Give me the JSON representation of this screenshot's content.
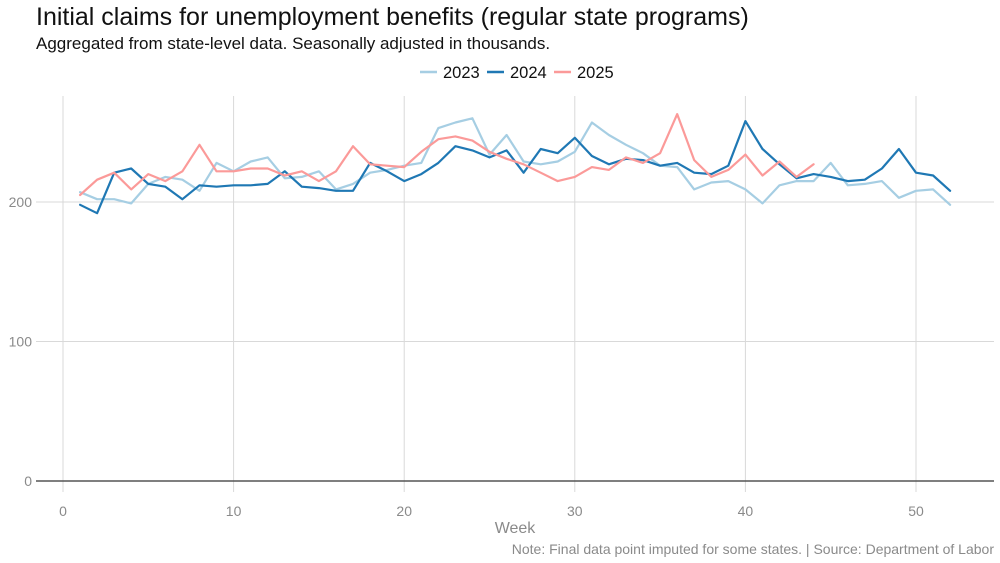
{
  "title": "Initial claims for unemployment benefits (regular state programs)",
  "subtitle": "Aggregated from state-level data. Seasonally adjusted in thousands.",
  "caption": "Note: Final data point imputed for some states. | Source: Department of Labor",
  "chart_data": {
    "type": "line",
    "xlabel": "Week",
    "ylabel": "",
    "xlim": [
      0,
      55
    ],
    "ylim": [
      0,
      275
    ],
    "x_ticks": [
      0,
      10,
      20,
      30,
      40,
      50
    ],
    "y_ticks": [
      0,
      100,
      200
    ],
    "grid": true,
    "legend_position": "top",
    "series": [
      {
        "name": "2023",
        "color": "#a6cee3",
        "x": [
          1,
          2,
          3,
          4,
          5,
          6,
          7,
          8,
          9,
          10,
          11,
          12,
          13,
          14,
          15,
          16,
          17,
          18,
          19,
          20,
          21,
          22,
          23,
          24,
          25,
          26,
          27,
          28,
          29,
          30,
          31,
          32,
          33,
          34,
          35,
          36,
          37,
          38,
          39,
          40,
          41,
          42,
          43,
          44,
          45,
          46,
          47,
          48,
          49,
          50,
          51,
          52
        ],
        "y": [
          207,
          202,
          202,
          199,
          213,
          218,
          216,
          208,
          228,
          222,
          229,
          232,
          217,
          218,
          222,
          209,
          213,
          221,
          223,
          226,
          228,
          253,
          257,
          260,
          234,
          248,
          229,
          227,
          229,
          236,
          257,
          248,
          241,
          235,
          226,
          225,
          209,
          214,
          215,
          209,
          199,
          212,
          215,
          215,
          228,
          212,
          213,
          215,
          203,
          208,
          209,
          198
        ]
      },
      {
        "name": "2024",
        "color": "#1f78b4",
        "x": [
          1,
          2,
          3,
          4,
          5,
          6,
          7,
          8,
          9,
          10,
          11,
          12,
          13,
          14,
          15,
          16,
          17,
          18,
          19,
          20,
          21,
          22,
          23,
          24,
          25,
          26,
          27,
          28,
          29,
          30,
          31,
          32,
          33,
          34,
          35,
          36,
          37,
          38,
          39,
          40,
          41,
          42,
          43,
          44,
          45,
          46,
          47,
          48,
          49,
          50,
          51,
          52
        ],
        "y": [
          198,
          192,
          221,
          224,
          213,
          211,
          202,
          212,
          211,
          212,
          212,
          213,
          222,
          211,
          210,
          208,
          208,
          228,
          222,
          215,
          220,
          228,
          240,
          237,
          232,
          237,
          221,
          238,
          235,
          246,
          233,
          227,
          231,
          230,
          226,
          228,
          221,
          220,
          226,
          258,
          238,
          227,
          217,
          220,
          218,
          215,
          216,
          224,
          238,
          221,
          219,
          208
        ]
      },
      {
        "name": "2025",
        "color": "#fb9a99",
        "x": [
          1,
          2,
          3,
          4,
          5,
          6,
          7,
          8,
          9,
          10,
          11,
          12,
          13,
          14,
          15,
          16,
          17,
          18,
          19,
          20,
          21,
          22,
          23,
          24,
          25,
          26,
          27,
          28,
          29,
          30,
          31,
          32,
          33,
          34,
          35,
          36,
          37,
          38,
          39,
          40,
          41,
          42,
          43,
          44
        ],
        "y": [
          205,
          216,
          221,
          209,
          220,
          215,
          222,
          241,
          222,
          222,
          224,
          224,
          219,
          222,
          215,
          222,
          240,
          227,
          226,
          225,
          236,
          245,
          247,
          244,
          236,
          231,
          227,
          221,
          215,
          218,
          225,
          223,
          232,
          228,
          235,
          263,
          230,
          218,
          223,
          234,
          219,
          229,
          218,
          227
        ]
      }
    ]
  }
}
